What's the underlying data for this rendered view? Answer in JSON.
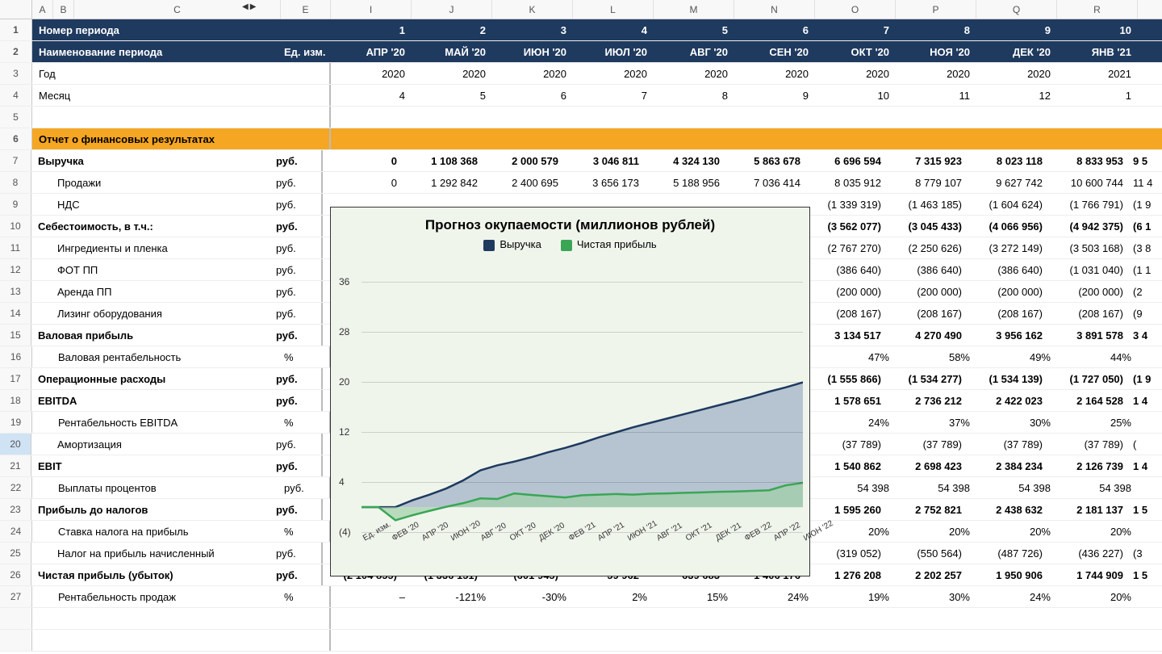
{
  "columns_hdr": [
    "A",
    "B",
    "C",
    "E",
    "I",
    "J",
    "K",
    "L",
    "M",
    "N",
    "O",
    "P",
    "Q",
    "R"
  ],
  "col_widths_label": {
    "A": 26,
    "B": 26,
    "C": 256,
    "E": 62
  },
  "data_col_width": 100,
  "row_headers": [
    "1",
    "2",
    "3",
    "4",
    "5",
    "6",
    "7",
    "8",
    "9",
    "10",
    "11",
    "12",
    "13",
    "14",
    "15",
    "16",
    "17",
    "18",
    "19",
    "20",
    "21",
    "22",
    "23",
    "24",
    "25",
    "26",
    "27",
    "",
    ""
  ],
  "selected_row": "20",
  "header1": {
    "label": "Номер периода",
    "values": [
      "1",
      "2",
      "3",
      "4",
      "5",
      "6",
      "7",
      "8",
      "9",
      "10"
    ]
  },
  "header2": {
    "label": "Наименование периода",
    "unit": "Ед. изм.",
    "values": [
      "АПР '20",
      "МАЙ '20",
      "ИЮН '20",
      "ИЮЛ '20",
      "АВГ '20",
      "СЕН '20",
      "ОКТ '20",
      "НОЯ '20",
      "ДЕК '20",
      "ЯНВ '21"
    ]
  },
  "rows": [
    {
      "n": "3",
      "label": "Год",
      "unit": "",
      "values": [
        "2020",
        "2020",
        "2020",
        "2020",
        "2020",
        "2020",
        "2020",
        "2020",
        "2020",
        "2021"
      ]
    },
    {
      "n": "4",
      "label": "Месяц",
      "unit": "",
      "values": [
        "4",
        "5",
        "6",
        "7",
        "8",
        "9",
        "10",
        "11",
        "12",
        "1"
      ]
    },
    {
      "n": "5",
      "label": "",
      "unit": "",
      "values": [
        "",
        "",
        "",
        "",
        "",
        "",
        "",
        "",
        "",
        ""
      ]
    },
    {
      "n": "6",
      "section": true,
      "label": "Отчет о финансовых результатах",
      "unit": "",
      "values": [
        "",
        "",
        "",
        "",
        "",
        "",
        "",
        "",
        "",
        ""
      ]
    },
    {
      "n": "7",
      "bold": true,
      "label": "Выручка",
      "unit": "руб.",
      "values": [
        "0",
        "1 108 368",
        "2 000 579",
        "3 046 811",
        "4 324 130",
        "5 863 678",
        "6 696 594",
        "7 315 923",
        "8 023 118",
        "8 833 953"
      ]
    },
    {
      "n": "8",
      "indent": 1,
      "label": "Продажи",
      "unit": "руб.",
      "values": [
        "0",
        "1 292 842",
        "2 400 695",
        "3 656 173",
        "5 188 956",
        "7 036 414",
        "8 035 912",
        "8 779 107",
        "9 627 742",
        "10 600 744"
      ]
    },
    {
      "n": "9",
      "indent": 1,
      "label": "НДС",
      "unit": "руб.",
      "values": [
        "",
        "",
        "",
        "",
        "",
        "",
        "(1 339 319)",
        "(1 463 185)",
        "(1 604 624)",
        "(1 766 791)"
      ]
    },
    {
      "n": "10",
      "bold": true,
      "label": "Себестоимость, в т.ч.:",
      "unit": "руб.",
      "values": [
        "",
        "",
        "",
        "",
        "",
        "",
        "(3 562 077)",
        "(3 045 433)",
        "(4 066 956)",
        "(4 942 375)"
      ]
    },
    {
      "n": "11",
      "indent": 1,
      "label": "Ингредиенты и пленка",
      "unit": "руб.",
      "values": [
        "",
        "",
        "",
        "",
        "",
        "",
        "(2 767 270)",
        "(2 250 626)",
        "(3 272 149)",
        "(3 503 168)"
      ]
    },
    {
      "n": "12",
      "indent": 1,
      "label": "ФОТ ПП",
      "unit": "руб.",
      "values": [
        "",
        "",
        "",
        "",
        "",
        "",
        "(386 640)",
        "(386 640)",
        "(386 640)",
        "(1 031 040)"
      ]
    },
    {
      "n": "13",
      "indent": 1,
      "label": "Аренда ПП",
      "unit": "руб.",
      "values": [
        "",
        "",
        "",
        "",
        "",
        "",
        "(200 000)",
        "(200 000)",
        "(200 000)",
        "(200 000)"
      ]
    },
    {
      "n": "14",
      "indent": 1,
      "label": "Лизинг оборудования",
      "unit": "руб.",
      "values": [
        "",
        "",
        "",
        "",
        "",
        "",
        "(208 167)",
        "(208 167)",
        "(208 167)",
        "(208 167)"
      ]
    },
    {
      "n": "15",
      "bold": true,
      "label": "Валовая прибыль",
      "unit": "руб.",
      "values": [
        "",
        "",
        "",
        "",
        "",
        "",
        "3 134 517",
        "4 270 490",
        "3 956 162",
        "3 891 578"
      ]
    },
    {
      "n": "16",
      "indent": 1,
      "label": "Валовая рентабельность",
      "unit": "%",
      "values": [
        "",
        "",
        "",
        "",
        "",
        "",
        "47%",
        "58%",
        "49%",
        "44%"
      ]
    },
    {
      "n": "17",
      "bold": true,
      "label": "Операционные расходы",
      "unit": "руб.",
      "values": [
        "",
        "",
        "",
        "",
        "",
        "",
        "(1 555 866)",
        "(1 534 277)",
        "(1 534 139)",
        "(1 727 050)"
      ]
    },
    {
      "n": "18",
      "bold": true,
      "label": "EBITDA",
      "unit": "руб.",
      "values": [
        "",
        "",
        "",
        "",
        "",
        "",
        "1 578 651",
        "2 736 212",
        "2 422 023",
        "2 164 528"
      ]
    },
    {
      "n": "19",
      "indent": 1,
      "label": "Рентабельность EBITDA",
      "unit": "%",
      "values": [
        "",
        "",
        "",
        "",
        "",
        "",
        "24%",
        "37%",
        "30%",
        "25%"
      ]
    },
    {
      "n": "20",
      "indent": 1,
      "label": "Амортизация",
      "unit": "руб.",
      "values": [
        "",
        "",
        "",
        "",
        "",
        "",
        "(37 789)",
        "(37 789)",
        "(37 789)",
        "(37 789)"
      ]
    },
    {
      "n": "21",
      "bold": true,
      "label": "EBIT",
      "unit": "руб.",
      "values": [
        "",
        "",
        "",
        "",
        "",
        "",
        "1 540 862",
        "2 698 423",
        "2 384 234",
        "2 126 739"
      ]
    },
    {
      "n": "22",
      "indent": 1,
      "label": "Выплаты процентов",
      "unit": "руб.",
      "values": [
        "",
        "",
        "",
        "",
        "",
        "",
        "54 398",
        "54 398",
        "54 398",
        "54 398"
      ]
    },
    {
      "n": "23",
      "bold": true,
      "label": "Прибыль до налогов",
      "unit": "руб.",
      "values": [
        "",
        "",
        "",
        "",
        "",
        "",
        "1 595 260",
        "2 752 821",
        "2 438 632",
        "2 181 137"
      ]
    },
    {
      "n": "24",
      "indent": 1,
      "label": "Ставка налога на прибыль",
      "unit": "%",
      "values": [
        "",
        "",
        "",
        "",
        "",
        "",
        "20%",
        "20%",
        "20%",
        "20%"
      ]
    },
    {
      "n": "25",
      "indent": 1,
      "label": "Налог на прибыль начисленный",
      "unit": "руб.",
      "values": [
        "",
        "",
        "",
        "",
        "",
        "",
        "(319 052)",
        "(550 564)",
        "(487 726)",
        "(436 227)"
      ]
    },
    {
      "n": "26",
      "bold": true,
      "label": "Чистая прибыль (убыток)",
      "unit": "руб.",
      "values": [
        "(2 104 855)",
        "(1 336 151)",
        "(601 945)",
        "59 962",
        "639 683",
        "1 406 176",
        "1 276 208",
        "2 202 257",
        "1 950 906",
        "1 744 909"
      ]
    },
    {
      "n": "27",
      "indent": 1,
      "label": "Рентабельность продаж",
      "unit": "%",
      "values": [
        "–",
        "-121%",
        "-30%",
        "2%",
        "15%",
        "24%",
        "19%",
        "30%",
        "24%",
        "20%"
      ]
    }
  ],
  "right_edge_fragments": {
    "7": "9 5",
    "8": "11 4",
    "9": "(1 9",
    "10": "(6 1",
    "11": "(3 8",
    "12": "(1 1",
    "13": "(2",
    "14": "(9",
    "15": "3 4",
    "16": "",
    "17": "(1 9",
    "18": "1 4",
    "19": "",
    "20": "(",
    "21": "1 4",
    "22": "",
    "23": "1 5",
    "24": "",
    "25": "(3",
    "26": "1 5",
    "27": ""
  },
  "chart": {
    "title": "Прогноз окупаемости (миллионов рублей)",
    "type": "area",
    "background": "#f0f5ec",
    "border": "#333333",
    "legend": [
      {
        "label": "Выручка",
        "color": "#1f3a5f"
      },
      {
        "label": "Чистая прибыль",
        "color": "#3aa655"
      }
    ],
    "ylim": [
      -4,
      40
    ],
    "yticks": [
      -4,
      4,
      12,
      20,
      28,
      36
    ],
    "ytick_labels": [
      "(4)",
      "4",
      "12",
      "20",
      "28",
      "36"
    ],
    "grid_color": "rgba(0,0,0,0.15)",
    "x_labels": [
      "Ед. изм.",
      "ФЕВ '20",
      "АПР '20",
      "ИЮН '20",
      "АВГ '20",
      "ОКТ '20",
      "ДЕК '20",
      "ФЕВ '21",
      "АПР '21",
      "ИЮН '21",
      "АВГ '21",
      "ОКТ '21",
      "ДЕК '21",
      "ФЕВ '22",
      "АПР '22",
      "ИЮН '22"
    ],
    "series": {
      "revenue": {
        "color": "#1f3a5f",
        "fill": "#8fa3bf",
        "fill_opacity": 0.6,
        "y": [
          0,
          0,
          0,
          1.1,
          2.0,
          3.0,
          4.3,
          5.9,
          6.7,
          7.3,
          8.0,
          8.8,
          9.5,
          10.3,
          11.2,
          12.0,
          12.8,
          13.5,
          14.2,
          14.9,
          15.6,
          16.3,
          17.0,
          17.7,
          18.5,
          19.2,
          20.0
        ]
      },
      "profit": {
        "color": "#3aa655",
        "fill": "#9fd0a8",
        "fill_opacity": 0.7,
        "y": [
          0,
          0,
          -2.1,
          -1.3,
          -0.6,
          0.06,
          0.64,
          1.4,
          1.3,
          2.2,
          1.95,
          1.74,
          1.55,
          1.9,
          2.0,
          2.1,
          2.0,
          2.15,
          2.2,
          2.3,
          2.35,
          2.45,
          2.5,
          2.6,
          2.7,
          3.5,
          3.9
        ]
      }
    },
    "title_fontsize": 17,
    "xlabel_fontsize": 10,
    "ylabel_fontsize": 12
  },
  "colors": {
    "navy": "#1f3a5f",
    "orange": "#f5a623",
    "grid_border": "#cccccc"
  }
}
